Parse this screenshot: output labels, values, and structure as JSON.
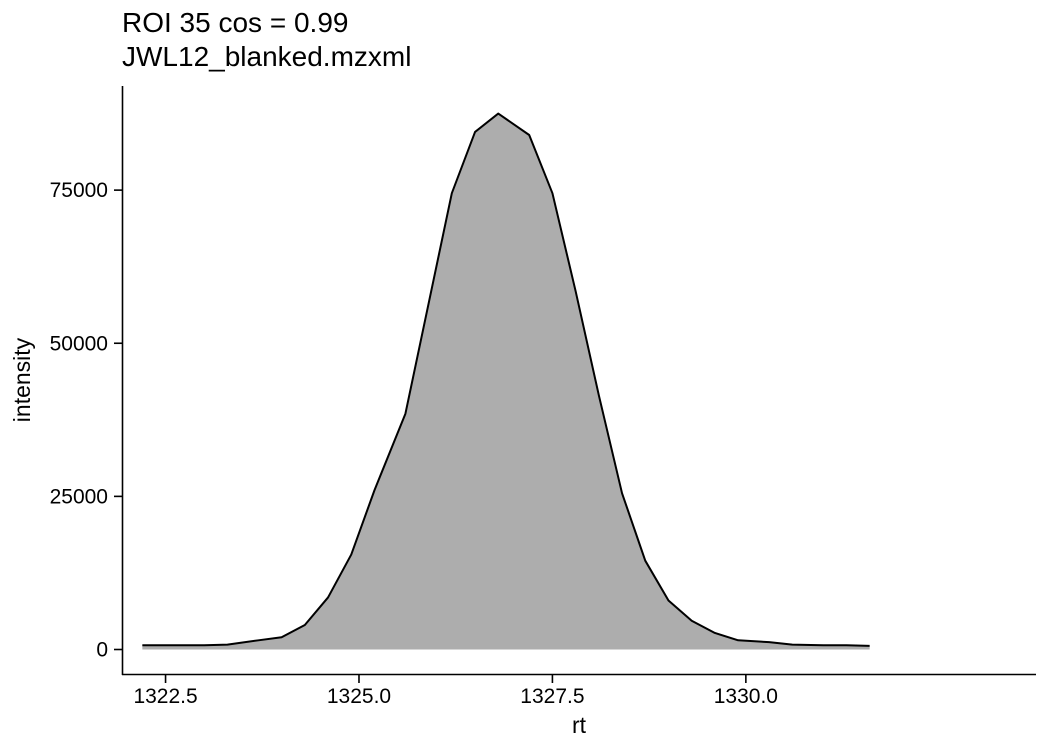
{
  "chart_data": {
    "type": "area",
    "title": "ROI 35 cos = 0.99",
    "subtitle": "JWL12_blanked.mzxml",
    "xlabel": "rt",
    "ylabel": "intensity",
    "xlim": [
      1321.95,
      1333.75
    ],
    "ylim": [
      -4000,
      92000
    ],
    "x_ticks": [
      1322.5,
      1325.0,
      1327.5,
      1330.0
    ],
    "x_tick_labels": [
      "1322.5",
      "1325.0",
      "1327.5",
      "1330.0"
    ],
    "y_ticks": [
      0,
      25000,
      50000,
      75000
    ],
    "y_tick_labels": [
      "0",
      "25000",
      "50000",
      "75000"
    ],
    "grid": false,
    "legend": "none",
    "fill_color": "#adadad",
    "line_color": "#000000",
    "series": [
      {
        "x": [
          1322.2,
          1322.6,
          1323.0,
          1323.3,
          1323.7,
          1324.0,
          1324.3,
          1324.6,
          1324.9,
          1325.2,
          1325.6,
          1325.9,
          1326.2,
          1326.5,
          1326.8,
          1327.2,
          1327.5,
          1327.8,
          1328.1,
          1328.4,
          1328.7,
          1329.0,
          1329.3,
          1329.6,
          1329.9,
          1330.3,
          1330.6,
          1331.0,
          1331.3,
          1331.6
        ],
        "y": [
          700,
          700,
          700,
          800,
          1500,
          2000,
          4000,
          8500,
          15500,
          26000,
          38500,
          56500,
          74500,
          84500,
          87500,
          84000,
          74500,
          58500,
          41500,
          25500,
          14500,
          8000,
          4700,
          2700,
          1500,
          1200,
          800,
          700,
          700,
          600
        ]
      }
    ]
  }
}
